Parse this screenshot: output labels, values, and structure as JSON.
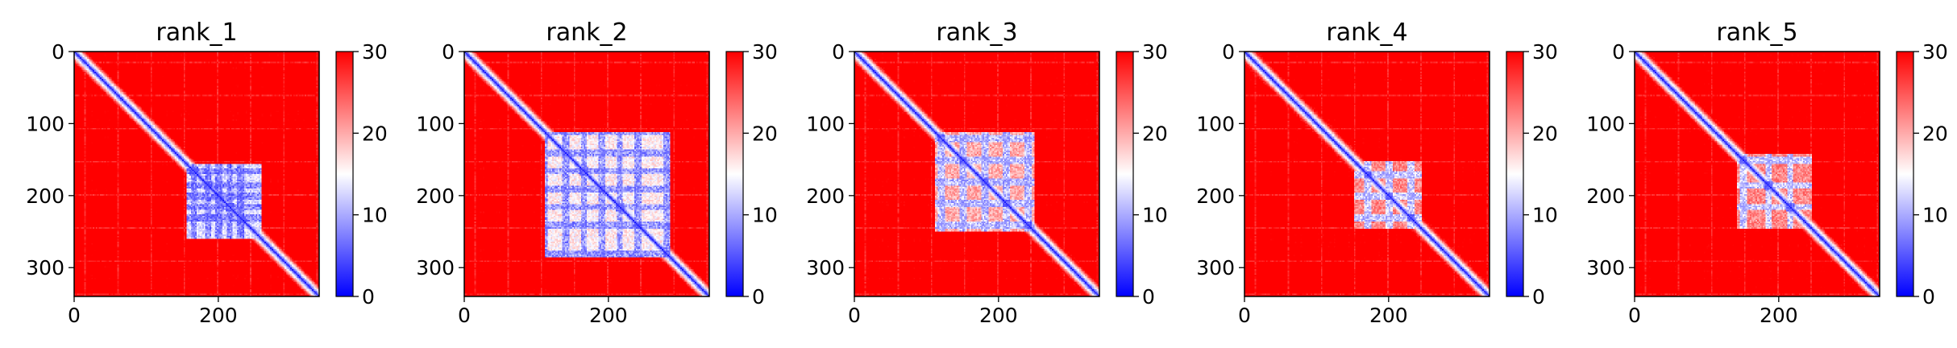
{
  "chart_data": [
    {
      "type": "heatmap",
      "title": "rank_1",
      "x_ticks": [
        "0",
        "200"
      ],
      "y_ticks": [
        "0",
        "100",
        "200",
        "300"
      ],
      "xlim": [
        0,
        340
      ],
      "ylim": [
        340,
        0
      ],
      "colorbar": {
        "ticks": [
          "0",
          "10",
          "20",
          "30"
        ],
        "range": [
          0,
          30
        ],
        "colormap": "bwr"
      },
      "pattern": {
        "diagonal_width": 9,
        "block_range": [
          155,
          260
        ],
        "block_strength": 1.0,
        "stripe_rows": [
          165,
          185,
          200,
          215,
          230
        ],
        "extra_stripes": []
      }
    },
    {
      "type": "heatmap",
      "title": "rank_2",
      "x_ticks": [
        "0",
        "200"
      ],
      "y_ticks": [
        "0",
        "100",
        "200",
        "300"
      ],
      "xlim": [
        0,
        340
      ],
      "ylim": [
        340,
        0
      ],
      "colorbar": {
        "ticks": [
          "0",
          "10",
          "20",
          "30"
        ],
        "range": [
          0,
          30
        ],
        "colormap": "bwr"
      },
      "pattern": {
        "diagonal_width": 9,
        "block_range": [
          110,
          285
        ],
        "block_strength": 0.8,
        "stripe_rows": [
          110,
          140,
          165,
          190,
          215,
          240,
          280
        ],
        "extra_stripes": []
      }
    },
    {
      "type": "heatmap",
      "title": "rank_3",
      "x_ticks": [
        "0",
        "200"
      ],
      "y_ticks": [
        "0",
        "100",
        "200",
        "300"
      ],
      "xlim": [
        0,
        340
      ],
      "ylim": [
        340,
        0
      ],
      "colorbar": {
        "ticks": [
          "0",
          "10",
          "20",
          "30"
        ],
        "range": [
          0,
          30
        ],
        "colormap": "bwr"
      },
      "pattern": {
        "diagonal_width": 8,
        "block_range": [
          110,
          250
        ],
        "block_strength": 0.5,
        "stripe_rows": [
          120,
          150,
          180,
          210,
          240
        ],
        "extra_stripes": []
      }
    },
    {
      "type": "heatmap",
      "title": "rank_4",
      "x_ticks": [
        "0",
        "200"
      ],
      "y_ticks": [
        "0",
        "100",
        "200",
        "300"
      ],
      "xlim": [
        0,
        340
      ],
      "ylim": [
        340,
        0
      ],
      "colorbar": {
        "ticks": [
          "0",
          "10",
          "20",
          "30"
        ],
        "range": [
          0,
          30
        ],
        "colormap": "bwr"
      },
      "pattern": {
        "diagonal_width": 7,
        "block_range": [
          150,
          245
        ],
        "block_strength": 0.35,
        "stripe_rows": [
          170,
          200,
          230
        ],
        "extra_stripes": []
      }
    },
    {
      "type": "heatmap",
      "title": "rank_5",
      "x_ticks": [
        "0",
        "200"
      ],
      "y_ticks": [
        "0",
        "100",
        "200",
        "300"
      ],
      "xlim": [
        0,
        340
      ],
      "ylim": [
        340,
        0
      ],
      "colorbar": {
        "ticks": [
          "0",
          "10",
          "20",
          "30"
        ],
        "range": [
          0,
          30
        ],
        "colormap": "bwr"
      },
      "pattern": {
        "diagonal_width": 8,
        "block_range": [
          140,
          245
        ],
        "block_strength": 0.35,
        "stripe_rows": [
          150,
          185,
          215
        ],
        "extra_stripes": []
      }
    }
  ]
}
